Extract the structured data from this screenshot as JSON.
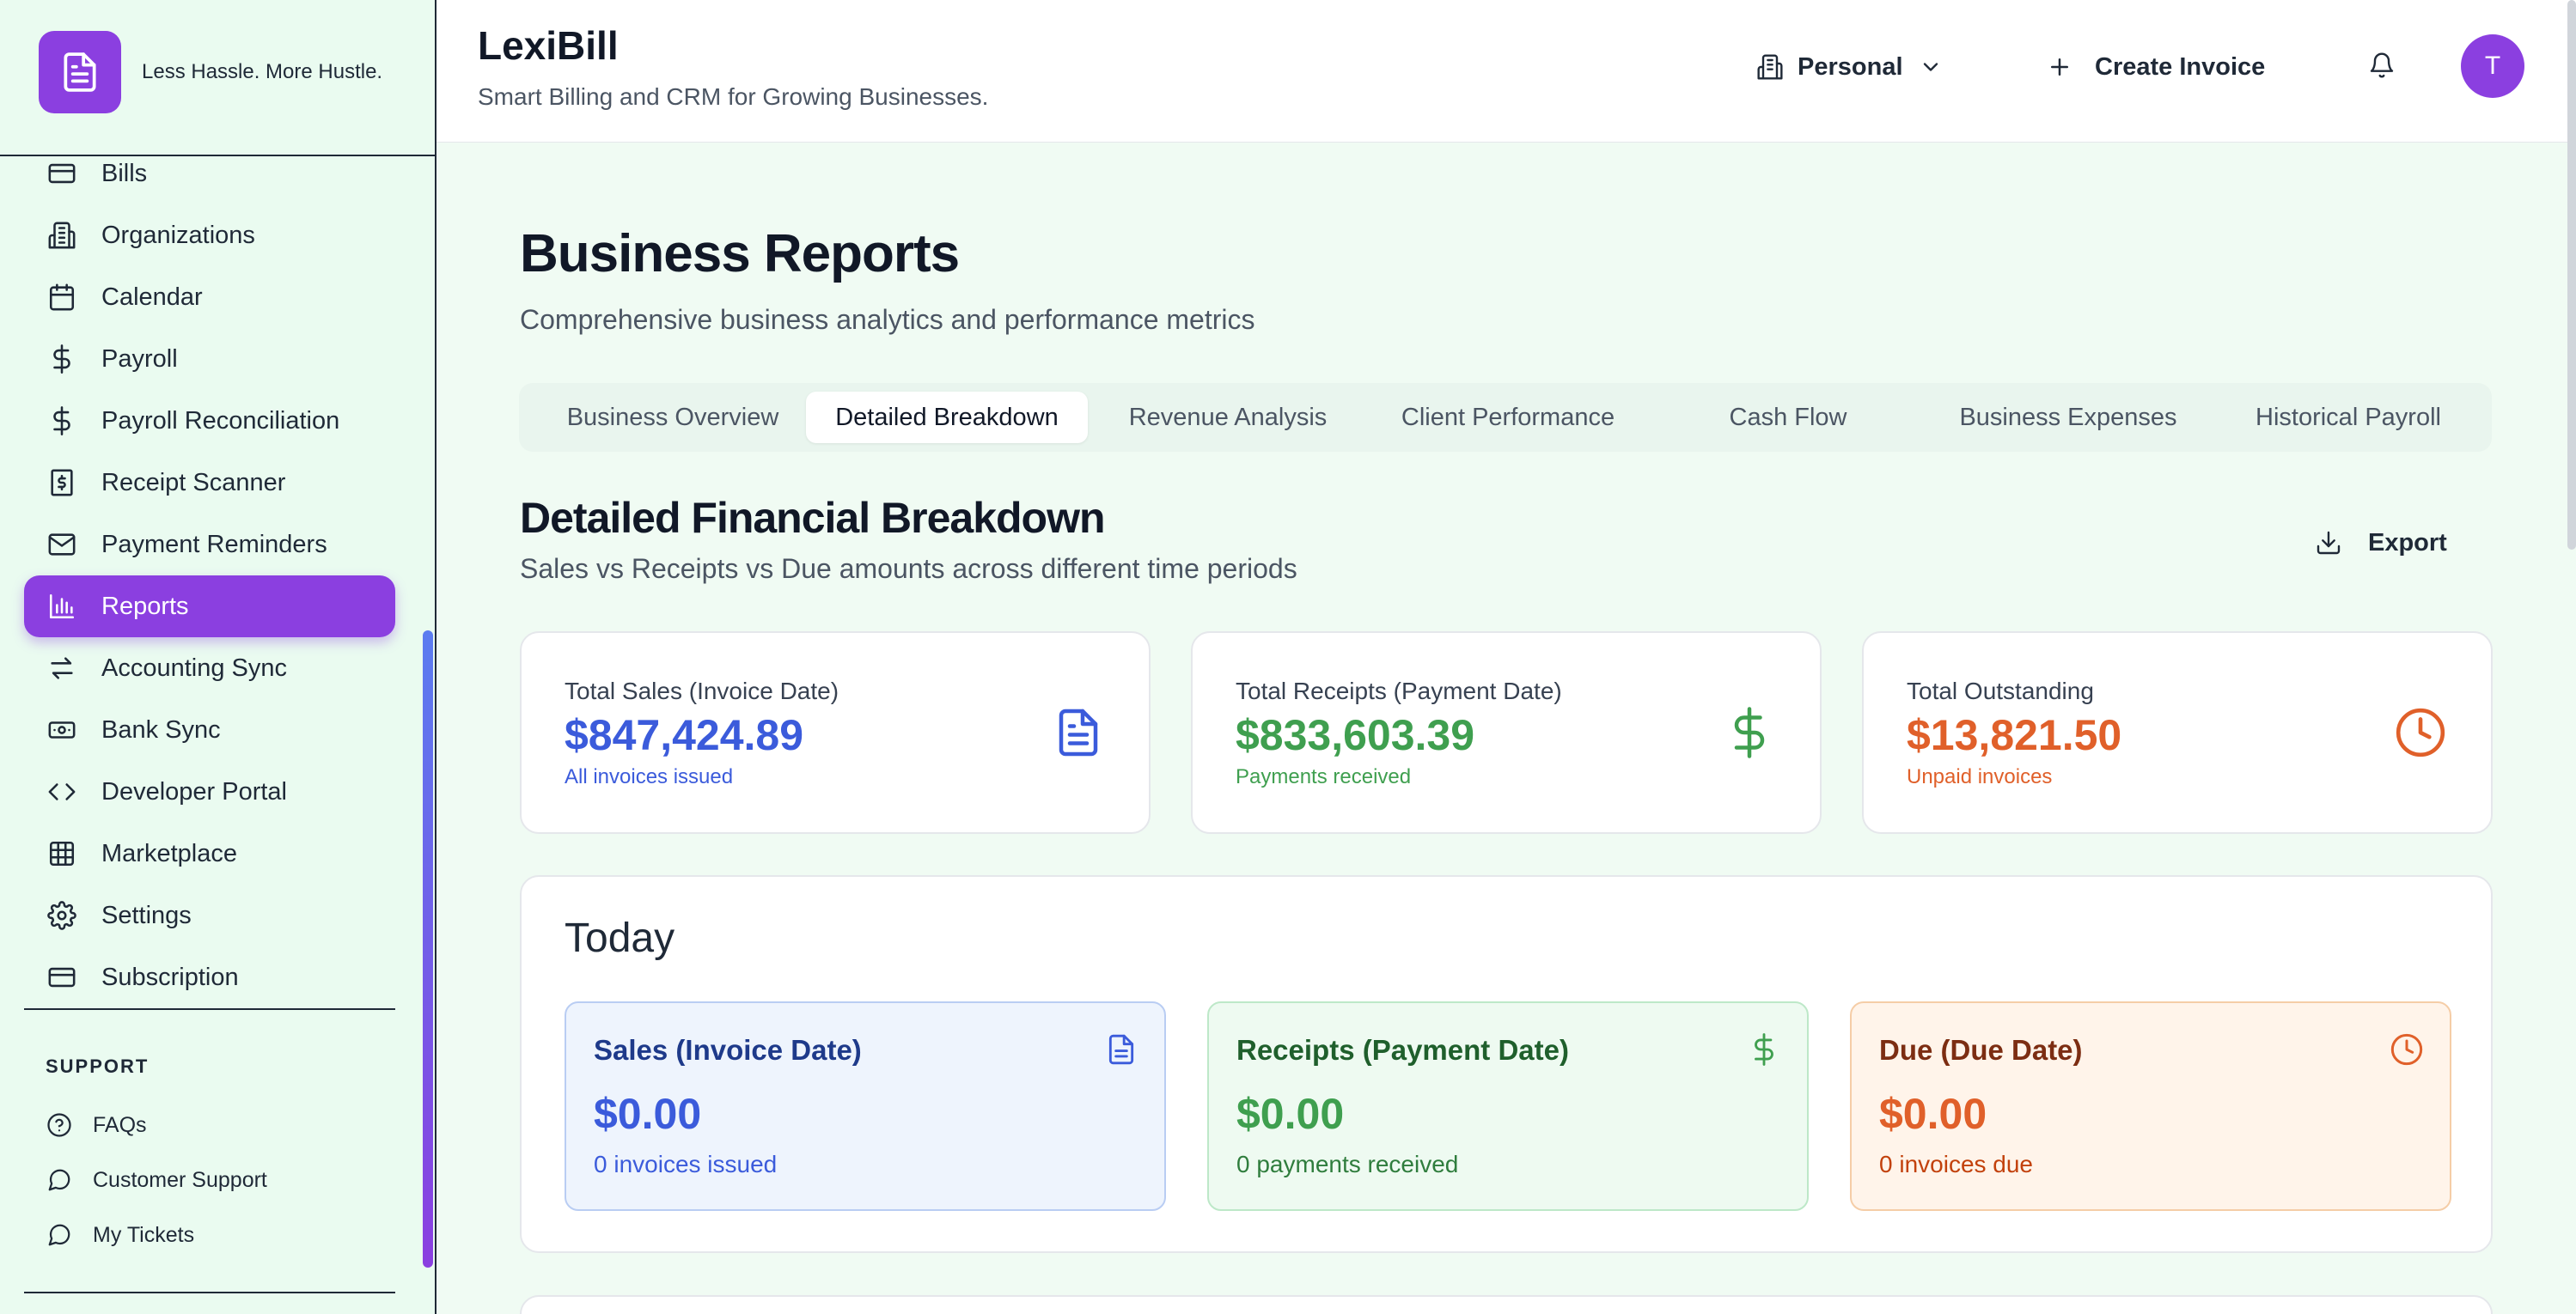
{
  "brand": {
    "tagline": "Less Hassle. More Hustle."
  },
  "sidebar": {
    "items": [
      {
        "label": "Bills",
        "icon": "credit-card-icon"
      },
      {
        "label": "Organizations",
        "icon": "building-icon"
      },
      {
        "label": "Calendar",
        "icon": "calendar-icon"
      },
      {
        "label": "Payroll",
        "icon": "dollar-icon"
      },
      {
        "label": "Payroll Reconciliation",
        "icon": "dollar-icon"
      },
      {
        "label": "Receipt Scanner",
        "icon": "receipt-icon"
      },
      {
        "label": "Payment Reminders",
        "icon": "mail-icon"
      },
      {
        "label": "Reports",
        "icon": "bar-chart-icon",
        "active": true
      },
      {
        "label": "Accounting Sync",
        "icon": "arrows-swap-icon"
      },
      {
        "label": "Bank Sync",
        "icon": "banknote-icon"
      },
      {
        "label": "Developer Portal",
        "icon": "code-icon"
      },
      {
        "label": "Marketplace",
        "icon": "grid-icon"
      },
      {
        "label": "Settings",
        "icon": "gear-icon"
      },
      {
        "label": "Subscription",
        "icon": "credit-card-icon"
      }
    ],
    "support_heading": "SUPPORT",
    "support_items": [
      {
        "label": "FAQs",
        "icon": "help-circle-icon"
      },
      {
        "label": "Customer Support",
        "icon": "chat-bubble-icon"
      },
      {
        "label": "My Tickets",
        "icon": "chat-bubble-icon"
      }
    ]
  },
  "header": {
    "title": "LexiBill",
    "subtitle": "Smart Billing and CRM for Growing Businesses.",
    "org_switch": "Personal",
    "create_invoice": "Create Invoice",
    "avatar_initial": "T"
  },
  "page": {
    "title": "Business Reports",
    "subtitle": "Comprehensive business analytics and performance metrics",
    "tabs": [
      {
        "label": "Business Overview"
      },
      {
        "label": "Detailed Breakdown",
        "active": true
      },
      {
        "label": "Revenue Analysis"
      },
      {
        "label": "Client Performance"
      },
      {
        "label": "Cash Flow"
      },
      {
        "label": "Business Expenses"
      },
      {
        "label": "Historical Payroll"
      }
    ]
  },
  "breakdown": {
    "title": "Detailed Financial Breakdown",
    "subtitle": "Sales vs Receipts vs Due amounts across different time periods",
    "export_label": "Export",
    "summary": [
      {
        "label": "Total Sales (Invoice Date)",
        "value": "$847,424.89",
        "sub": "All invoices issued",
        "color": "#3b5bdb",
        "icon": "file-text-icon"
      },
      {
        "label": "Total Receipts (Payment Date)",
        "value": "$833,603.39",
        "sub": "Payments received",
        "color": "#3f9f4f",
        "icon": "dollar-icon"
      },
      {
        "label": "Total Outstanding",
        "value": "$13,821.50",
        "sub": "Unpaid invoices",
        "color": "#e0602a",
        "icon": "clock-icon"
      }
    ],
    "period": {
      "title": "Today",
      "cards": [
        {
          "label": "Sales (Invoice Date)",
          "value": "$0.00",
          "sub": "0 invoices issued",
          "color": "#3b5bdb",
          "bg": "#eef4fd",
          "border": "#b9cdf3",
          "icon": "file-text-icon"
        },
        {
          "label": "Receipts (Payment Date)",
          "value": "$0.00",
          "sub": "0 payments received",
          "color": "#3f9f4f",
          "bg": "#eefaf1",
          "border": "#bde8c8",
          "icon": "dollar-icon"
        },
        {
          "label": "Due (Due Date)",
          "value": "$0.00",
          "sub": "0 invoices due",
          "color": "#e0602a",
          "bg": "#fff4ea",
          "border": "#f5cda7",
          "icon": "clock-icon"
        }
      ]
    }
  }
}
